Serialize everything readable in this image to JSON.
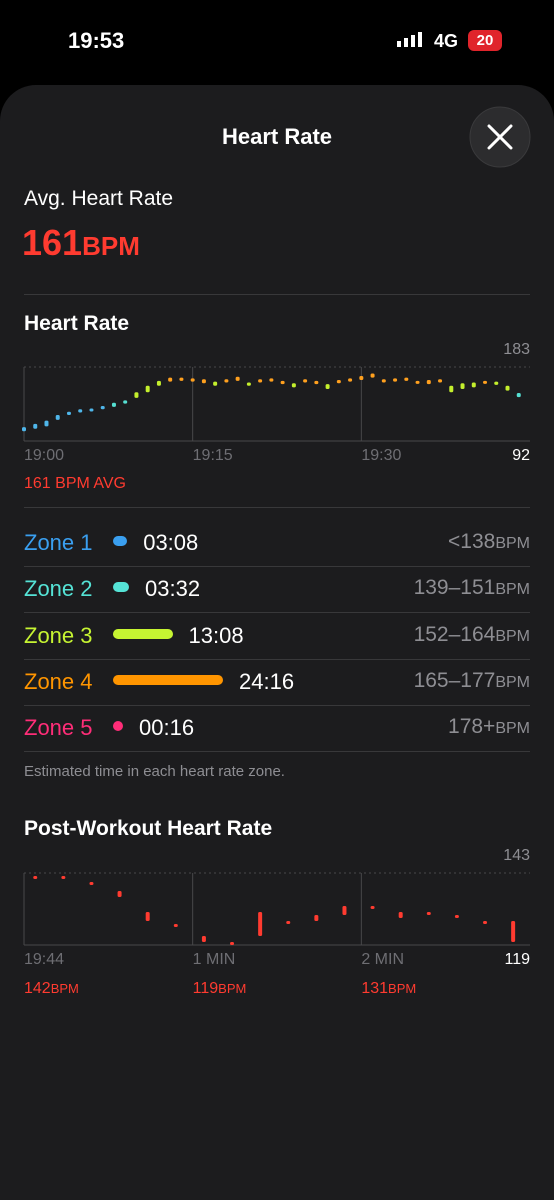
{
  "status_bar": {
    "time": "19:53",
    "network": "4G",
    "battery": "20"
  },
  "header": {
    "title": "Heart Rate"
  },
  "summary": {
    "label": "Avg. Heart Rate",
    "value": "161",
    "unit": "BPM"
  },
  "heart_rate_chart": {
    "type": "range",
    "title": "Heart Rate",
    "xlim": [
      0,
      45
    ],
    "ylim": [
      92,
      183
    ],
    "yticks": [
      92,
      183
    ],
    "xticks": [
      {
        "value": 0,
        "label": "19:00"
      },
      {
        "value": 15,
        "label": "19:15"
      },
      {
        "value": 30,
        "label": "19:30"
      }
    ],
    "avg_label": "161 BPM AVG",
    "series": [
      {
        "color": "#4fb6ea",
        "x": [
          0,
          1,
          2,
          3,
          4,
          5,
          6,
          7
        ],
        "low": [
          104,
          107,
          110,
          118,
          124,
          127,
          129,
          131
        ],
        "high": [
          109,
          113,
          117,
          124,
          128,
          131,
          132,
          135
        ]
      },
      {
        "color": "#55dfd2",
        "x": [
          8,
          9,
          44
        ],
        "low": [
          134,
          138,
          146
        ],
        "high": [
          139,
          142,
          151
        ]
      },
      {
        "color": "#c4ef2d",
        "x": [
          10,
          11,
          12,
          17,
          20,
          24,
          27,
          38,
          39,
          40,
          42,
          43
        ],
        "low": [
          145,
          152,
          160,
          160,
          160,
          158,
          156,
          152,
          156,
          158,
          161,
          154
        ],
        "high": [
          152,
          160,
          166,
          165,
          164,
          163,
          162,
          160,
          163,
          164,
          165,
          160
        ]
      },
      {
        "color": "#ffa01e",
        "x": [
          13,
          14,
          15,
          16,
          18,
          19,
          21,
          22,
          23,
          25,
          26,
          28,
          29,
          30,
          31,
          32,
          33,
          34,
          35,
          36,
          37,
          41
        ],
        "low": [
          165,
          166,
          165,
          163,
          164,
          166,
          164,
          165,
          162,
          164,
          162,
          163,
          165,
          167,
          170,
          164,
          165,
          166,
          163,
          162,
          164,
          163
        ],
        "high": [
          170,
          170,
          169,
          168,
          168,
          171,
          168,
          169,
          166,
          168,
          166,
          167,
          169,
          172,
          175,
          168,
          169,
          170,
          166,
          167,
          168,
          166
        ]
      }
    ]
  },
  "zones": [
    {
      "name": "Zone 1",
      "color": "#3a9ff0",
      "seconds": 188,
      "duration": "03:08",
      "range": "<138",
      "unit": "BPM"
    },
    {
      "name": "Zone 2",
      "color": "#55e3d6",
      "seconds": 212,
      "duration": "03:32",
      "range": "139–151",
      "unit": "BPM"
    },
    {
      "name": "Zone 3",
      "color": "#c6f432",
      "seconds": 788,
      "duration": "13:08",
      "range": "152–164",
      "unit": "BPM"
    },
    {
      "name": "Zone 4",
      "color": "#ff9500",
      "seconds": 1456,
      "duration": "24:16",
      "range": "165–177",
      "unit": "BPM"
    },
    {
      "name": "Zone 5",
      "color": "#ff2d78",
      "seconds": 16,
      "duration": "00:16",
      "range": "178+",
      "unit": "BPM"
    }
  ],
  "zones_note": "Estimated time in each heart rate zone.",
  "post_workout_chart": {
    "type": "range",
    "title": "Post-Workout Heart Rate",
    "xlim": [
      0,
      180
    ],
    "ylim": [
      119,
      143
    ],
    "yticks": [
      119,
      143
    ],
    "xticks": [
      {
        "value": 0,
        "label": "19:44"
      },
      {
        "value": 60,
        "label": "1 MIN"
      },
      {
        "value": 120,
        "label": "2 MIN"
      }
    ],
    "readings": [
      {
        "value": "142",
        "unit": "BPM"
      },
      {
        "value": "119",
        "unit": "BPM"
      },
      {
        "value": "131",
        "unit": "BPM"
      }
    ],
    "series": [
      {
        "color": "#ff3b30",
        "x": [
          4,
          14,
          24,
          34,
          44,
          54,
          64,
          74,
          84,
          94,
          104,
          114,
          124,
          134,
          144,
          154,
          164,
          174
        ],
        "low": [
          141,
          142,
          140,
          135,
          127,
          125,
          120,
          119,
          122,
          126,
          127,
          129,
          131,
          128,
          129,
          128,
          127,
          120
        ],
        "high": [
          142,
          142,
          140,
          137,
          130,
          126,
          122,
          120,
          130,
          127,
          129,
          132,
          132,
          130,
          130,
          129,
          127,
          127
        ]
      }
    ]
  }
}
